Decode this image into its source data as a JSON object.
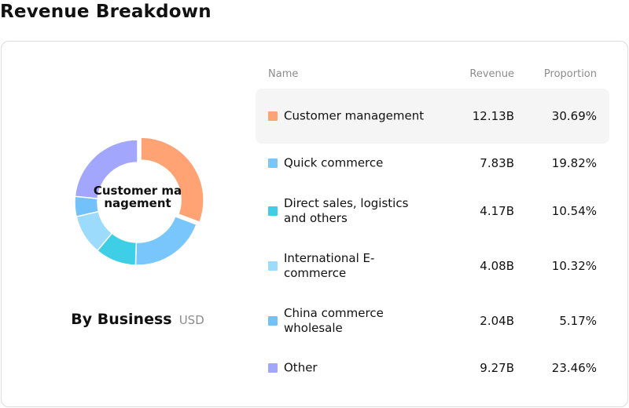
{
  "page": {
    "title": "Revenue Breakdown"
  },
  "panel": {
    "center_label": "Customer management",
    "group_label": "By Business",
    "unit": "USD"
  },
  "table": {
    "headers": {
      "name": "Name",
      "revenue": "Revenue",
      "proportion": "Proportion"
    }
  },
  "chart_data": {
    "type": "pie",
    "variant": "donut",
    "title": "",
    "selected_index": 0,
    "categories": [
      "Customer management",
      "Quick commerce",
      "Direct sales, logistics and others",
      "International E-commerce",
      "China commerce wholesale",
      "Other"
    ],
    "revenue_labels": [
      "12.13B",
      "7.83B",
      "4.17B",
      "4.08B",
      "2.04B",
      "9.27B"
    ],
    "revenue_billion_usd": [
      12.13,
      7.83,
      4.17,
      4.08,
      2.04,
      9.27
    ],
    "proportion_labels": [
      "30.69%",
      "19.82%",
      "10.54%",
      "10.32%",
      "5.17%",
      "23.46%"
    ],
    "values": [
      30.69,
      19.82,
      10.54,
      10.32,
      5.17,
      23.46
    ],
    "colors": [
      "#ffa274",
      "#78c6fc",
      "#3ecfe6",
      "#9ddbfc",
      "#72c1fa",
      "#a2a6fd"
    ],
    "legend": "right"
  }
}
